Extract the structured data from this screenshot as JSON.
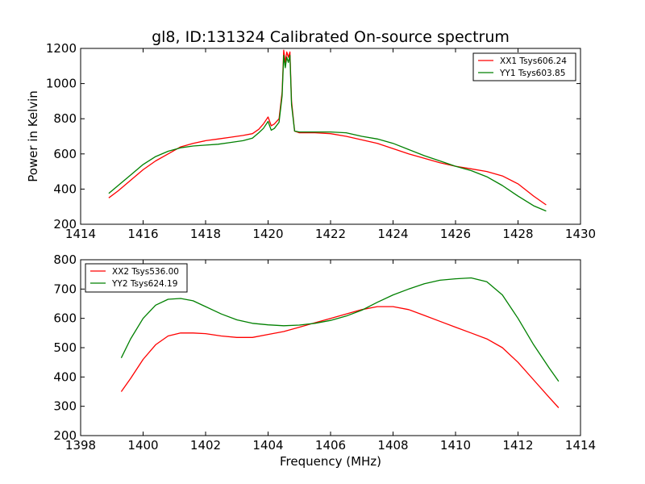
{
  "chart_data": [
    {
      "type": "line",
      "title": "gl8, ID:131324 Calibrated On-source spectrum",
      "xlabel": "",
      "ylabel": "Power in Kelvin",
      "xlim": [
        1414,
        1430
      ],
      "ylim": [
        200,
        1200
      ],
      "xticks": [
        "1414",
        "1416",
        "1418",
        "1420",
        "1422",
        "1424",
        "1426",
        "1428",
        "1430"
      ],
      "yticks": [
        "200",
        "400",
        "600",
        "800",
        "1000",
        "1200"
      ],
      "grid": false,
      "legend_position": "top-right",
      "series": [
        {
          "name": "XX1 Tsys606.24",
          "color": "#ff0000",
          "x": [
            1414.9,
            1415.2,
            1415.6,
            1416.0,
            1416.4,
            1416.8,
            1417.2,
            1417.6,
            1418.0,
            1418.4,
            1418.8,
            1419.2,
            1419.5,
            1419.7,
            1419.85,
            1420.0,
            1420.1,
            1420.2,
            1420.35,
            1420.45,
            1420.5,
            1420.55,
            1420.6,
            1420.65,
            1420.7,
            1420.75,
            1420.85,
            1421.0,
            1421.5,
            1422.0,
            1422.5,
            1423.0,
            1423.5,
            1424.0,
            1424.5,
            1425.0,
            1425.5,
            1426.0,
            1426.5,
            1427.0,
            1427.5,
            1428.0,
            1428.5,
            1428.9
          ],
          "y": [
            350,
            390,
            450,
            510,
            560,
            600,
            640,
            660,
            675,
            685,
            695,
            705,
            715,
            740,
            770,
            810,
            760,
            770,
            800,
            950,
            1190,
            1120,
            1180,
            1150,
            1180,
            900,
            730,
            720,
            720,
            715,
            700,
            680,
            660,
            630,
            600,
            575,
            550,
            530,
            515,
            500,
            475,
            430,
            360,
            310
          ]
        },
        {
          "name": "YY1 Tsys603.85",
          "color": "#008000",
          "x": [
            1414.9,
            1415.2,
            1415.6,
            1416.0,
            1416.4,
            1416.8,
            1417.2,
            1417.6,
            1418.0,
            1418.4,
            1418.8,
            1419.2,
            1419.5,
            1419.7,
            1419.85,
            1420.0,
            1420.1,
            1420.2,
            1420.35,
            1420.45,
            1420.5,
            1420.55,
            1420.6,
            1420.65,
            1420.7,
            1420.75,
            1420.85,
            1421.0,
            1421.5,
            1422.0,
            1422.5,
            1423.0,
            1423.5,
            1424.0,
            1424.5,
            1425.0,
            1425.5,
            1426.0,
            1426.5,
            1427.0,
            1427.5,
            1428.0,
            1428.5,
            1428.9
          ],
          "y": [
            375,
            420,
            480,
            540,
            585,
            615,
            635,
            645,
            650,
            655,
            665,
            675,
            690,
            720,
            745,
            785,
            735,
            745,
            780,
            930,
            1160,
            1090,
            1150,
            1120,
            1160,
            880,
            730,
            725,
            725,
            725,
            720,
            700,
            685,
            660,
            625,
            590,
            560,
            530,
            505,
            470,
            420,
            360,
            305,
            275
          ]
        }
      ]
    },
    {
      "type": "line",
      "title": "",
      "xlabel": "Frequency (MHz)",
      "ylabel": "",
      "xlim": [
        1398,
        1414
      ],
      "ylim": [
        200,
        800
      ],
      "xticks": [
        "1398",
        "1400",
        "1402",
        "1404",
        "1406",
        "1408",
        "1410",
        "1412",
        "1414"
      ],
      "yticks": [
        "200",
        "300",
        "400",
        "500",
        "600",
        "700",
        "800"
      ],
      "grid": false,
      "legend_position": "top-left",
      "series": [
        {
          "name": "XX2 Tsys536.00",
          "color": "#ff0000",
          "x": [
            1399.3,
            1399.6,
            1400.0,
            1400.4,
            1400.8,
            1401.2,
            1401.6,
            1402.0,
            1402.5,
            1403.0,
            1403.5,
            1404.0,
            1404.5,
            1405.0,
            1405.5,
            1406.0,
            1406.5,
            1407.0,
            1407.5,
            1408.0,
            1408.5,
            1409.0,
            1409.5,
            1410.0,
            1410.5,
            1411.0,
            1411.5,
            1412.0,
            1412.5,
            1413.0,
            1413.3
          ],
          "y": [
            350,
            395,
            460,
            510,
            540,
            550,
            550,
            548,
            540,
            535,
            535,
            545,
            555,
            570,
            585,
            600,
            615,
            630,
            640,
            640,
            630,
            610,
            590,
            570,
            550,
            530,
            500,
            450,
            390,
            330,
            295
          ]
        },
        {
          "name": "YY2 Tsys624.19",
          "color": "#008000",
          "x": [
            1399.3,
            1399.6,
            1400.0,
            1400.4,
            1400.8,
            1401.2,
            1401.6,
            1402.0,
            1402.5,
            1403.0,
            1403.5,
            1404.0,
            1404.5,
            1405.0,
            1405.5,
            1406.0,
            1406.5,
            1407.0,
            1407.5,
            1408.0,
            1408.5,
            1409.0,
            1409.5,
            1410.0,
            1410.5,
            1411.0,
            1411.5,
            1412.0,
            1412.5,
            1413.0,
            1413.3
          ],
          "y": [
            465,
            530,
            600,
            645,
            665,
            668,
            660,
            640,
            615,
            595,
            583,
            578,
            575,
            577,
            583,
            593,
            608,
            628,
            655,
            680,
            700,
            718,
            730,
            735,
            738,
            725,
            680,
            600,
            510,
            430,
            385
          ]
        }
      ]
    }
  ]
}
